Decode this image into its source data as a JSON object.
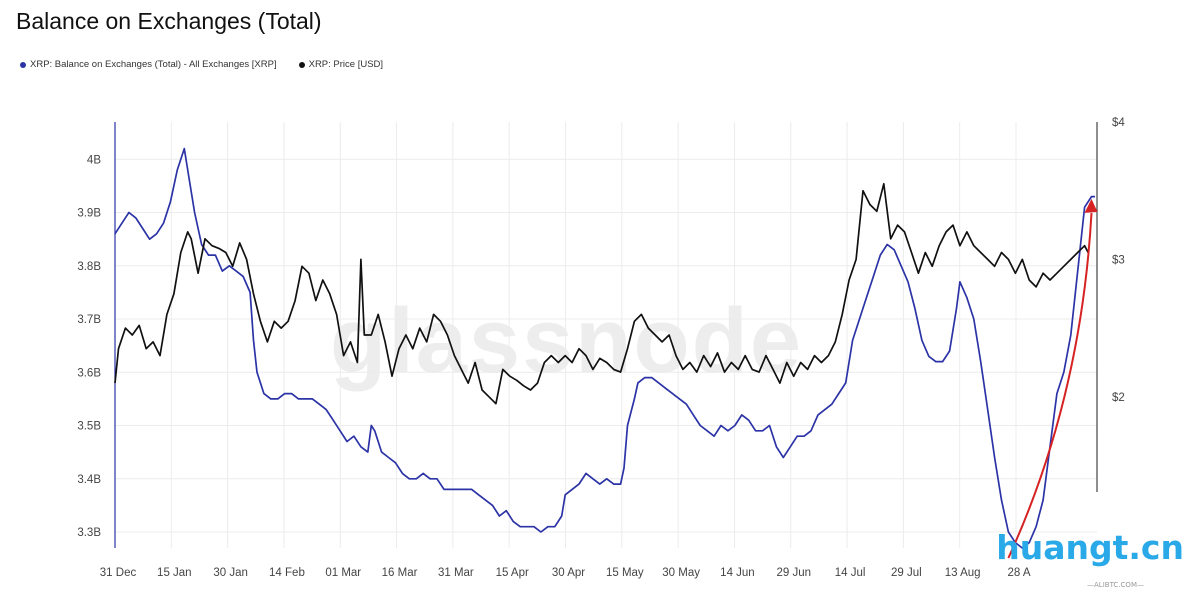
{
  "title": "Balance on Exchanges (Total)",
  "watermark": "glassnode",
  "corner_logo": "huangt.cn",
  "corner_sub": "—ALIBTC.COM—",
  "colors": {
    "balance": "#2b33a6",
    "price": "#111111",
    "arrow": "#d62222",
    "grid": "#ececec"
  },
  "legend": [
    {
      "label": "XRP: Balance on Exchanges (Total) - All Exchanges [XRP]",
      "color": "#2b33a6"
    },
    {
      "label": "XRP: Price [USD]",
      "color": "#111111"
    }
  ],
  "chart_data": {
    "type": "line",
    "x_axis": {
      "ticks": [
        "31 Dec",
        "15 Jan",
        "30 Jan",
        "14 Feb",
        "01 Mar",
        "16 Mar",
        "31 Mar",
        "15 Apr",
        "30 Apr",
        "15 May",
        "30 May",
        "14 Jun",
        "29 Jun",
        "14 Jul",
        "29 Jul",
        "13 Aug",
        "28 A"
      ]
    },
    "y_left": {
      "ticks": [
        "4B",
        "3.9B",
        "3.8B",
        "3.7B",
        "3.6B",
        "3.5B",
        "3.4B",
        "3.3B"
      ],
      "ylim": [
        3.27,
        4.07
      ],
      "unit": "B XRP"
    },
    "y_right": {
      "ticks": [
        "$4",
        "$3",
        "$2"
      ],
      "ylim": [
        0.9,
        4.0
      ],
      "scale": "linear",
      "unit": "USD"
    },
    "grid": true,
    "legend_position": "top-left",
    "annotation": "red arrow highlighting the late-August rise in exchange balance",
    "series": [
      {
        "name": "XRP: Balance on Exchanges (Total) - All Exchanges [XRP]",
        "axis": "left",
        "points": [
          [
            0,
            3.86
          ],
          [
            2,
            3.88
          ],
          [
            4,
            3.9
          ],
          [
            6,
            3.89
          ],
          [
            8,
            3.87
          ],
          [
            10,
            3.85
          ],
          [
            12,
            3.86
          ],
          [
            14,
            3.88
          ],
          [
            16,
            3.92
          ],
          [
            18,
            3.98
          ],
          [
            20,
            4.02
          ],
          [
            21,
            3.98
          ],
          [
            23,
            3.9
          ],
          [
            25,
            3.84
          ],
          [
            27,
            3.82
          ],
          [
            29,
            3.82
          ],
          [
            31,
            3.79
          ],
          [
            33,
            3.8
          ],
          [
            35,
            3.79
          ],
          [
            37,
            3.78
          ],
          [
            39,
            3.75
          ],
          [
            40,
            3.66
          ],
          [
            41,
            3.6
          ],
          [
            43,
            3.56
          ],
          [
            45,
            3.55
          ],
          [
            47,
            3.55
          ],
          [
            49,
            3.56
          ],
          [
            51,
            3.56
          ],
          [
            53,
            3.55
          ],
          [
            55,
            3.55
          ],
          [
            57,
            3.55
          ],
          [
            59,
            3.54
          ],
          [
            61,
            3.53
          ],
          [
            63,
            3.51
          ],
          [
            65,
            3.49
          ],
          [
            67,
            3.47
          ],
          [
            69,
            3.48
          ],
          [
            71,
            3.46
          ],
          [
            73,
            3.45
          ],
          [
            74,
            3.5
          ],
          [
            75,
            3.49
          ],
          [
            77,
            3.45
          ],
          [
            79,
            3.44
          ],
          [
            81,
            3.43
          ],
          [
            83,
            3.41
          ],
          [
            85,
            3.4
          ],
          [
            87,
            3.4
          ],
          [
            89,
            3.41
          ],
          [
            91,
            3.4
          ],
          [
            93,
            3.4
          ],
          [
            95,
            3.38
          ],
          [
            97,
            3.38
          ],
          [
            99,
            3.38
          ],
          [
            101,
            3.38
          ],
          [
            103,
            3.38
          ],
          [
            105,
            3.37
          ],
          [
            107,
            3.36
          ],
          [
            109,
            3.35
          ],
          [
            111,
            3.33
          ],
          [
            113,
            3.34
          ],
          [
            115,
            3.32
          ],
          [
            117,
            3.31
          ],
          [
            119,
            3.31
          ],
          [
            121,
            3.31
          ],
          [
            123,
            3.3
          ],
          [
            125,
            3.31
          ],
          [
            127,
            3.31
          ],
          [
            129,
            3.33
          ],
          [
            130,
            3.37
          ],
          [
            132,
            3.38
          ],
          [
            134,
            3.39
          ],
          [
            136,
            3.41
          ],
          [
            138,
            3.4
          ],
          [
            140,
            3.39
          ],
          [
            142,
            3.4
          ],
          [
            144,
            3.39
          ],
          [
            146,
            3.39
          ],
          [
            147,
            3.42
          ],
          [
            148,
            3.5
          ],
          [
            150,
            3.55
          ],
          [
            151,
            3.58
          ],
          [
            153,
            3.59
          ],
          [
            155,
            3.59
          ],
          [
            157,
            3.58
          ],
          [
            159,
            3.57
          ],
          [
            161,
            3.56
          ],
          [
            163,
            3.55
          ],
          [
            165,
            3.54
          ],
          [
            167,
            3.52
          ],
          [
            169,
            3.5
          ],
          [
            171,
            3.49
          ],
          [
            173,
            3.48
          ],
          [
            175,
            3.5
          ],
          [
            177,
            3.49
          ],
          [
            179,
            3.5
          ],
          [
            181,
            3.52
          ],
          [
            183,
            3.51
          ],
          [
            185,
            3.49
          ],
          [
            187,
            3.49
          ],
          [
            189,
            3.5
          ],
          [
            191,
            3.46
          ],
          [
            193,
            3.44
          ],
          [
            195,
            3.46
          ],
          [
            197,
            3.48
          ],
          [
            199,
            3.48
          ],
          [
            201,
            3.49
          ],
          [
            203,
            3.52
          ],
          [
            205,
            3.53
          ],
          [
            207,
            3.54
          ],
          [
            209,
            3.56
          ],
          [
            211,
            3.58
          ],
          [
            213,
            3.66
          ],
          [
            215,
            3.7
          ],
          [
            217,
            3.74
          ],
          [
            219,
            3.78
          ],
          [
            221,
            3.82
          ],
          [
            223,
            3.84
          ],
          [
            225,
            3.83
          ],
          [
            227,
            3.8
          ],
          [
            229,
            3.77
          ],
          [
            231,
            3.72
          ],
          [
            233,
            3.66
          ],
          [
            235,
            3.63
          ],
          [
            237,
            3.62
          ],
          [
            239,
            3.62
          ],
          [
            241,
            3.64
          ],
          [
            243,
            3.72
          ],
          [
            244,
            3.77
          ],
          [
            246,
            3.74
          ],
          [
            248,
            3.7
          ],
          [
            250,
            3.62
          ],
          [
            252,
            3.53
          ],
          [
            254,
            3.44
          ],
          [
            256,
            3.36
          ],
          [
            258,
            3.3
          ],
          [
            260,
            3.28
          ],
          [
            262,
            3.27
          ],
          [
            264,
            3.28
          ],
          [
            266,
            3.31
          ],
          [
            268,
            3.36
          ],
          [
            270,
            3.46
          ],
          [
            272,
            3.56
          ],
          [
            274,
            3.6
          ],
          [
            276,
            3.67
          ],
          [
            278,
            3.79
          ],
          [
            280,
            3.91
          ],
          [
            282,
            3.93
          ],
          [
            283,
            3.93
          ]
        ]
      },
      {
        "name": "XRP: Price [USD]",
        "axis": "right",
        "points": [
          [
            0,
            2.1
          ],
          [
            1,
            2.35
          ],
          [
            3,
            2.5
          ],
          [
            5,
            2.45
          ],
          [
            7,
            2.52
          ],
          [
            9,
            2.35
          ],
          [
            11,
            2.4
          ],
          [
            13,
            2.3
          ],
          [
            15,
            2.6
          ],
          [
            17,
            2.75
          ],
          [
            19,
            3.05
          ],
          [
            21,
            3.2
          ],
          [
            22,
            3.15
          ],
          [
            24,
            2.9
          ],
          [
            26,
            3.15
          ],
          [
            28,
            3.1
          ],
          [
            30,
            3.08
          ],
          [
            32,
            3.05
          ],
          [
            34,
            2.95
          ],
          [
            36,
            3.12
          ],
          [
            38,
            3.0
          ],
          [
            40,
            2.75
          ],
          [
            42,
            2.55
          ],
          [
            44,
            2.4
          ],
          [
            46,
            2.55
          ],
          [
            48,
            2.5
          ],
          [
            50,
            2.55
          ],
          [
            52,
            2.7
          ],
          [
            54,
            2.95
          ],
          [
            56,
            2.9
          ],
          [
            58,
            2.7
          ],
          [
            60,
            2.85
          ],
          [
            62,
            2.75
          ],
          [
            64,
            2.6
          ],
          [
            66,
            2.3
          ],
          [
            68,
            2.4
          ],
          [
            70,
            2.25
          ],
          [
            71,
            3.0
          ],
          [
            72,
            2.45
          ],
          [
            74,
            2.45
          ],
          [
            76,
            2.6
          ],
          [
            78,
            2.4
          ],
          [
            80,
            2.15
          ],
          [
            82,
            2.35
          ],
          [
            84,
            2.45
          ],
          [
            86,
            2.35
          ],
          [
            88,
            2.5
          ],
          [
            90,
            2.4
          ],
          [
            92,
            2.6
          ],
          [
            94,
            2.55
          ],
          [
            96,
            2.45
          ],
          [
            98,
            2.3
          ],
          [
            100,
            2.2
          ],
          [
            102,
            2.1
          ],
          [
            104,
            2.25
          ],
          [
            106,
            2.05
          ],
          [
            108,
            2.0
          ],
          [
            110,
            1.95
          ],
          [
            112,
            2.2
          ],
          [
            114,
            2.15
          ],
          [
            116,
            2.12
          ],
          [
            118,
            2.08
          ],
          [
            120,
            2.05
          ],
          [
            122,
            2.1
          ],
          [
            124,
            2.25
          ],
          [
            126,
            2.3
          ],
          [
            128,
            2.25
          ],
          [
            130,
            2.3
          ],
          [
            132,
            2.25
          ],
          [
            134,
            2.35
          ],
          [
            136,
            2.3
          ],
          [
            138,
            2.2
          ],
          [
            140,
            2.28
          ],
          [
            142,
            2.25
          ],
          [
            144,
            2.2
          ],
          [
            146,
            2.18
          ],
          [
            148,
            2.35
          ],
          [
            150,
            2.55
          ],
          [
            152,
            2.6
          ],
          [
            154,
            2.5
          ],
          [
            156,
            2.45
          ],
          [
            158,
            2.4
          ],
          [
            160,
            2.45
          ],
          [
            162,
            2.3
          ],
          [
            164,
            2.2
          ],
          [
            166,
            2.25
          ],
          [
            168,
            2.18
          ],
          [
            170,
            2.3
          ],
          [
            172,
            2.22
          ],
          [
            174,
            2.32
          ],
          [
            176,
            2.18
          ],
          [
            178,
            2.25
          ],
          [
            180,
            2.2
          ],
          [
            182,
            2.3
          ],
          [
            184,
            2.2
          ],
          [
            186,
            2.18
          ],
          [
            188,
            2.3
          ],
          [
            190,
            2.2
          ],
          [
            192,
            2.1
          ],
          [
            194,
            2.25
          ],
          [
            196,
            2.15
          ],
          [
            198,
            2.25
          ],
          [
            200,
            2.2
          ],
          [
            202,
            2.3
          ],
          [
            204,
            2.25
          ],
          [
            206,
            2.3
          ],
          [
            208,
            2.4
          ],
          [
            210,
            2.6
          ],
          [
            212,
            2.85
          ],
          [
            214,
            3.0
          ],
          [
            216,
            3.5
          ],
          [
            218,
            3.4
          ],
          [
            220,
            3.35
          ],
          [
            222,
            3.55
          ],
          [
            224,
            3.15
          ],
          [
            226,
            3.25
          ],
          [
            228,
            3.2
          ],
          [
            230,
            3.05
          ],
          [
            232,
            2.9
          ],
          [
            234,
            3.05
          ],
          [
            236,
            2.95
          ],
          [
            238,
            3.1
          ],
          [
            240,
            3.2
          ],
          [
            242,
            3.25
          ],
          [
            244,
            3.1
          ],
          [
            246,
            3.2
          ],
          [
            248,
            3.1
          ],
          [
            250,
            3.05
          ],
          [
            252,
            3.0
          ],
          [
            254,
            2.95
          ],
          [
            256,
            3.05
          ],
          [
            258,
            3.0
          ],
          [
            260,
            2.9
          ],
          [
            262,
            3.0
          ],
          [
            264,
            2.85
          ],
          [
            266,
            2.8
          ],
          [
            268,
            2.9
          ],
          [
            270,
            2.85
          ],
          [
            272,
            2.9
          ],
          [
            274,
            2.95
          ],
          [
            276,
            3.0
          ],
          [
            278,
            3.05
          ],
          [
            280,
            3.1
          ],
          [
            281,
            3.05
          ]
        ]
      }
    ]
  }
}
